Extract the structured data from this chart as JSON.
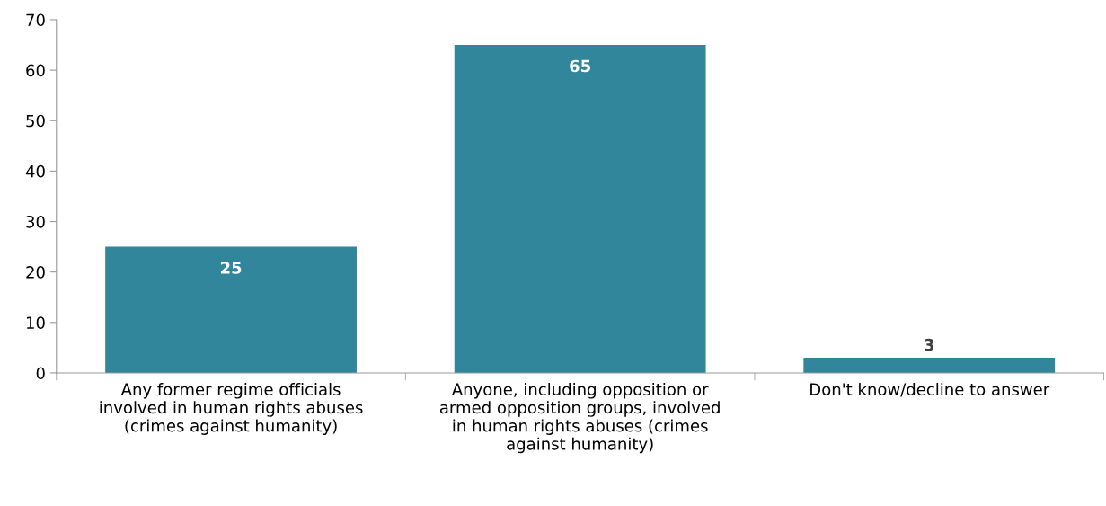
{
  "chart_data": {
    "type": "bar",
    "categories": [
      "Any former regime officials\ninvolved in human rights abuses\n(crimes against humanity)",
      "Anyone, including opposition or\narmed opposition groups, involved\nin human rights abuses (crimes\nagainst humanity)",
      "Don't know/decline to answer"
    ],
    "values": [
      25,
      65,
      3
    ],
    "color": "#31869b",
    "ylim": [
      0,
      70
    ],
    "yticks": [
      0,
      10,
      20,
      30,
      40,
      50,
      60,
      70
    ],
    "data_labels": true,
    "grid": false,
    "legend": false
  }
}
